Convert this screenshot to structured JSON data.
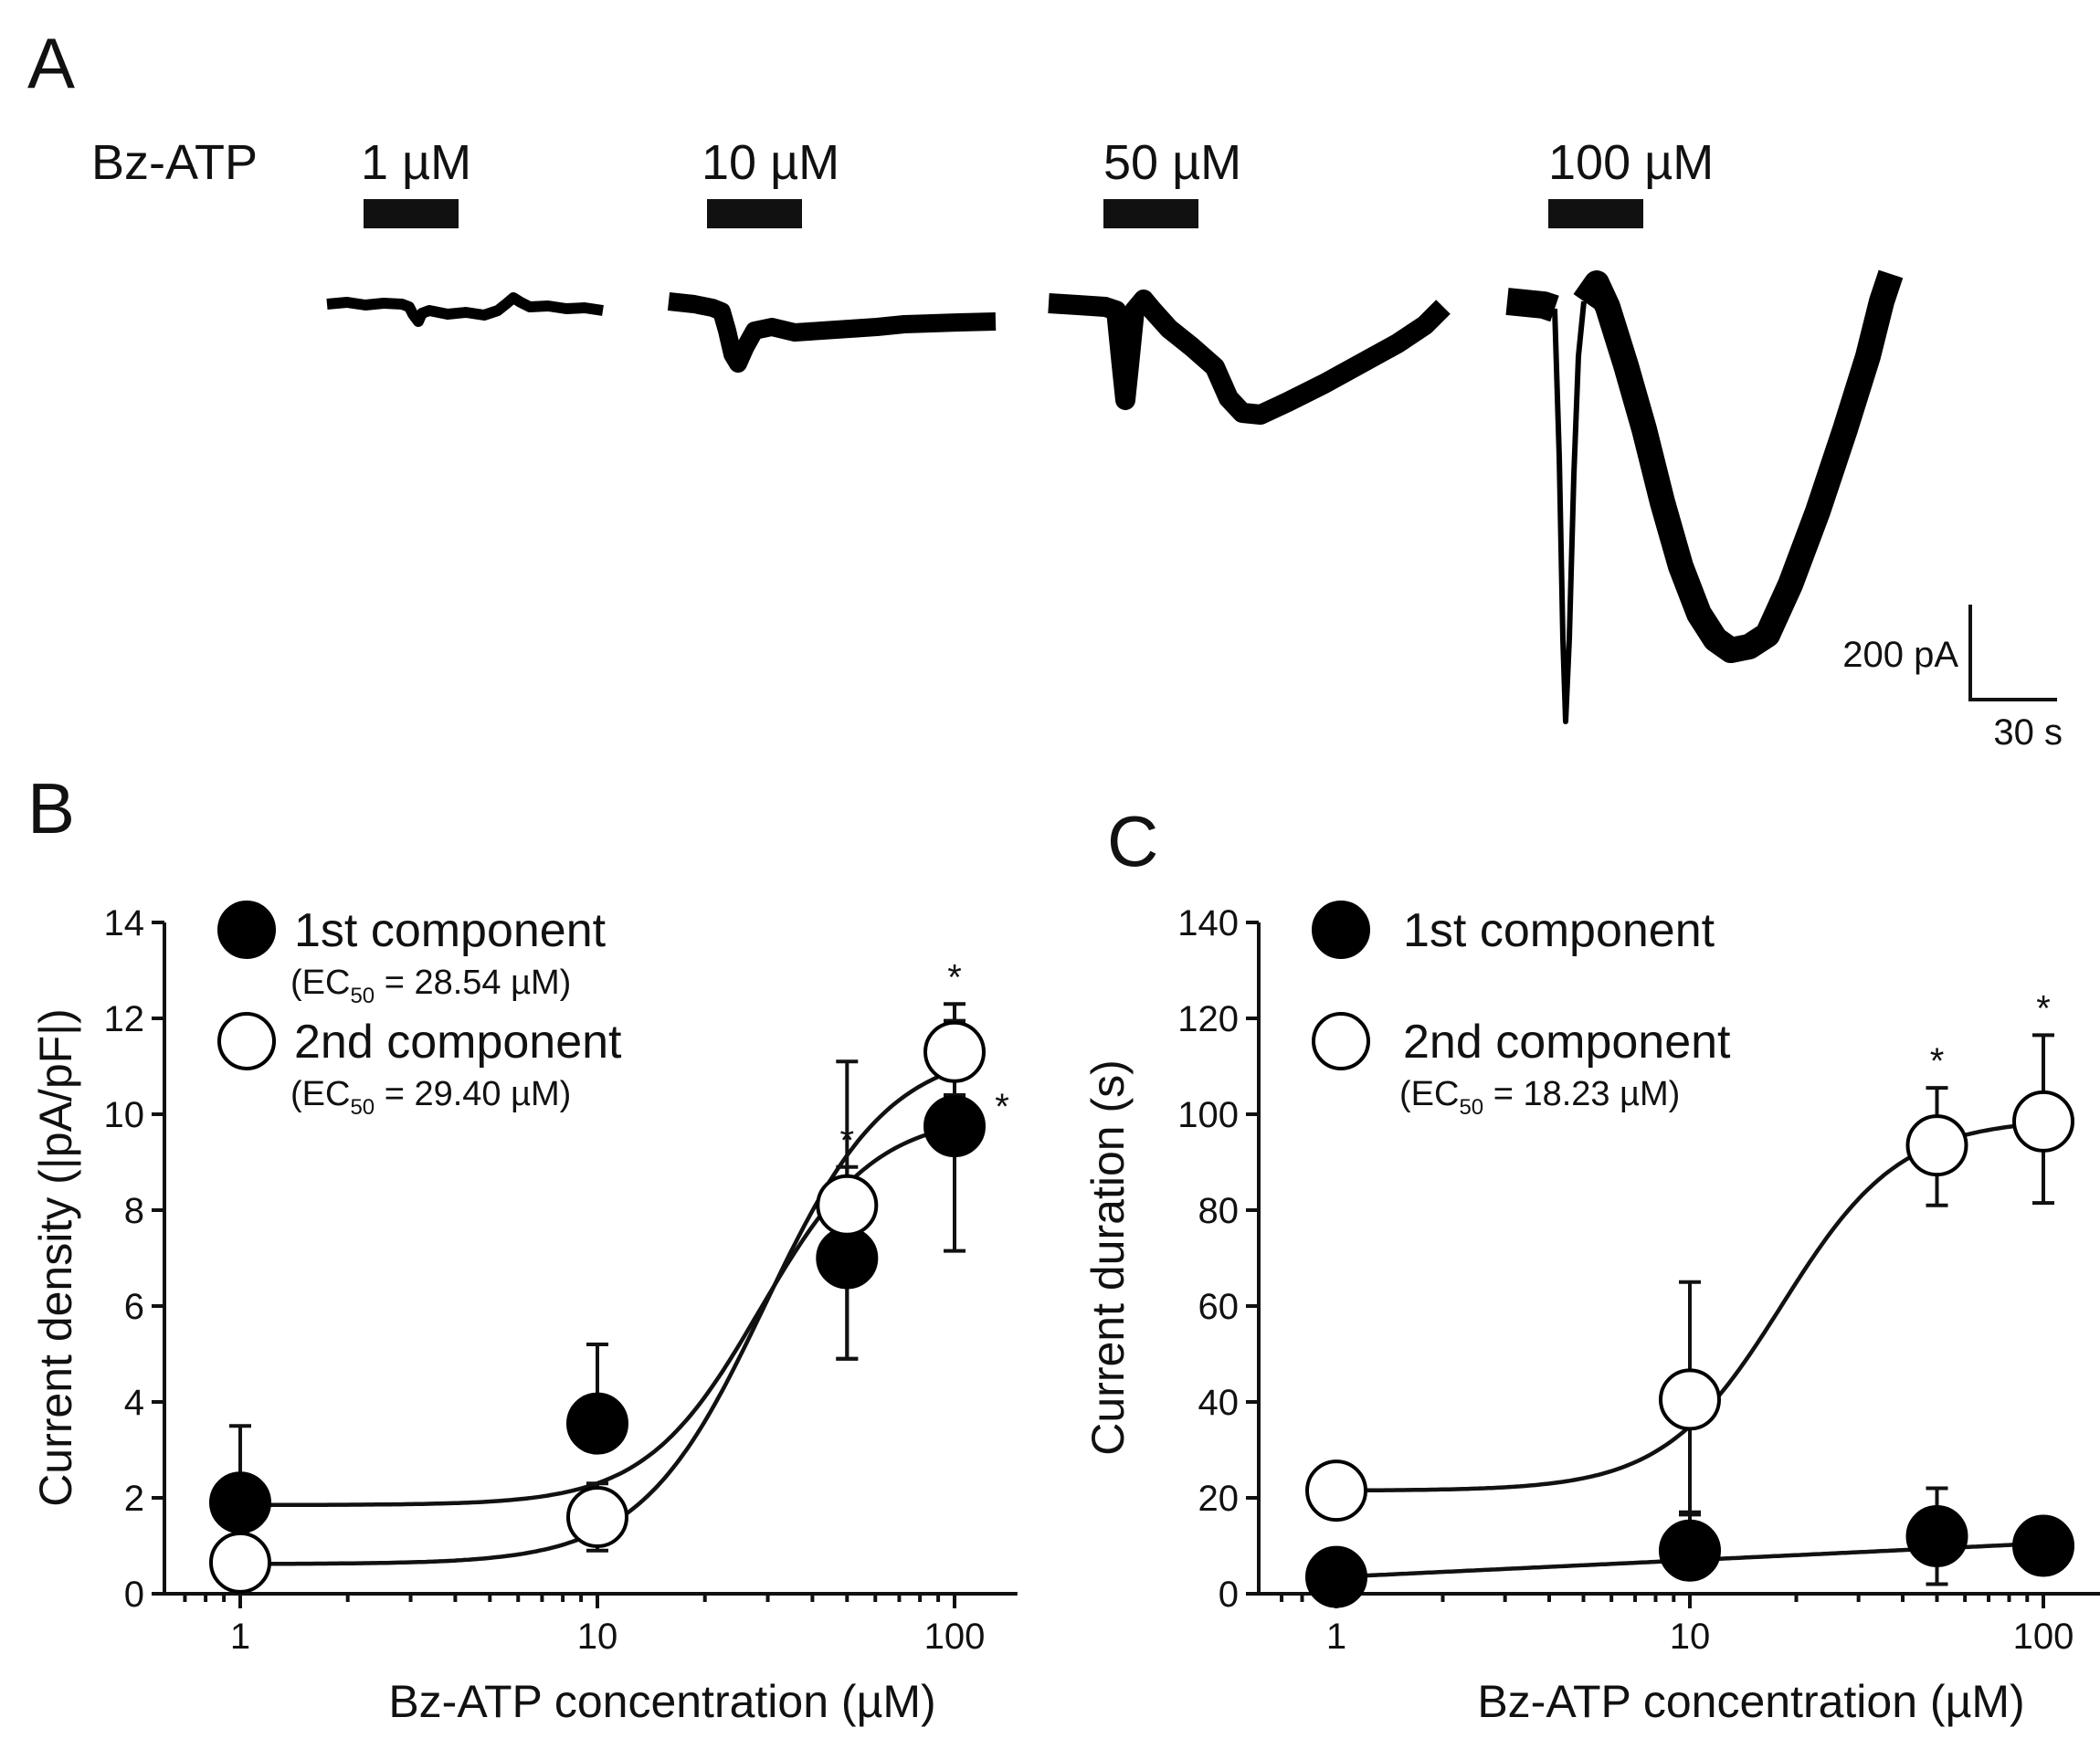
{
  "panel_a": {
    "letter": "A",
    "agonist_label": "Bz-ATP",
    "concentrations": [
      "1 µM",
      "10 µM",
      "50 µM",
      "100 µM"
    ],
    "scale_bar": {
      "current": "200 pA",
      "time": "30 s"
    }
  },
  "chart_data": [
    {
      "panel": "B",
      "type": "scatter",
      "xlabel": "Bz-ATP concentration (µM)",
      "ylabel": "Current density (|pA/pF|)",
      "xscale": "log",
      "xlim": [
        0.7,
        150
      ],
      "ylim": [
        0,
        14
      ],
      "xticks": [
        1,
        10,
        100
      ],
      "xtick_labels": [
        "1",
        "10",
        "100"
      ],
      "yticks": [
        0,
        2,
        4,
        6,
        8,
        10,
        12,
        14
      ],
      "ytick_labels": [
        "0",
        "2",
        "4",
        "6",
        "8",
        "10",
        "12",
        "14"
      ],
      "legend": [
        {
          "name": "1st component",
          "ec50": "28.54 µM",
          "marker": "filled"
        },
        {
          "name": "2nd component",
          "ec50": "29.40 µM",
          "marker": "open"
        }
      ],
      "ec_prefix": "(EC",
      "ec_sub": "50",
      "series": [
        {
          "name": "1st component",
          "marker": "filled",
          "x": [
            1,
            10,
            50,
            100
          ],
          "y": [
            1.9,
            3.55,
            7.0,
            9.75
          ],
          "err_upper": [
            1.6,
            1.65,
            4.1,
            2.2
          ],
          "err_lower": [
            0,
            0,
            2.1,
            2.6
          ],
          "fit": {
            "bottom": 1.85,
            "top": 10.0,
            "ec50": 28.54,
            "hill": 2.7
          }
        },
        {
          "name": "2nd component",
          "marker": "open",
          "x": [
            1,
            10,
            50,
            100
          ],
          "y": [
            0.65,
            1.6,
            8.1,
            11.3
          ],
          "err_upper": [
            0.3,
            0.7,
            0.8,
            1.0
          ],
          "err_lower": [
            0.3,
            0.7,
            3.2,
            0.9
          ],
          "fit": {
            "bottom": 0.62,
            "top": 11.4,
            "ec50": 29.4,
            "hill": 2.5
          }
        }
      ],
      "significance": [
        {
          "series": 1,
          "x": 50,
          "label": "*"
        },
        {
          "series": 1,
          "x": 100,
          "label": "*"
        },
        {
          "series": 0,
          "x": 100,
          "label": "*"
        }
      ]
    },
    {
      "panel": "C",
      "type": "scatter",
      "xlabel": "Bz-ATP concentration (µM)",
      "ylabel": "Current duration (s)",
      "xscale": "log",
      "xlim": [
        0.7,
        150
      ],
      "ylim": [
        0,
        140
      ],
      "xticks": [
        1,
        10,
        100
      ],
      "xtick_labels": [
        "1",
        "10",
        "100"
      ],
      "yticks": [
        0,
        20,
        40,
        60,
        80,
        100,
        120,
        140
      ],
      "ytick_labels": [
        "0",
        "20",
        "40",
        "60",
        "80",
        "100",
        "120",
        "140"
      ],
      "legend": [
        {
          "name": "1st component",
          "ec50": null,
          "marker": "filled"
        },
        {
          "name": "2nd component",
          "ec50": "18.23 µM",
          "marker": "open"
        }
      ],
      "ec_prefix": "(EC",
      "ec_sub": "50",
      "series": [
        {
          "name": "1st component",
          "marker": "filled",
          "x": [
            1,
            10,
            50,
            100
          ],
          "y": [
            3.5,
            9,
            12,
            10
          ],
          "err_upper": [
            0,
            8,
            10,
            0
          ],
          "err_lower": [
            0,
            0,
            10,
            0
          ],
          "fit": {
            "type": "linear-log",
            "y_at_1": 3.5,
            "y_at_100": 10.5
          }
        },
        {
          "name": "2nd component",
          "marker": "open",
          "x": [
            1,
            10,
            50,
            100
          ],
          "y": [
            21.5,
            40.5,
            93.5,
            98.5
          ],
          "err_upper": [
            0,
            24.5,
            12,
            18
          ],
          "err_lower": [
            0,
            24,
            12.5,
            17
          ],
          "fit": {
            "bottom": 21.5,
            "top": 99,
            "ec50": 18.23,
            "hill": 2.6
          }
        }
      ],
      "significance": [
        {
          "series": 1,
          "x": 50,
          "label": "*"
        },
        {
          "series": 1,
          "x": 100,
          "label": "*"
        }
      ]
    }
  ]
}
